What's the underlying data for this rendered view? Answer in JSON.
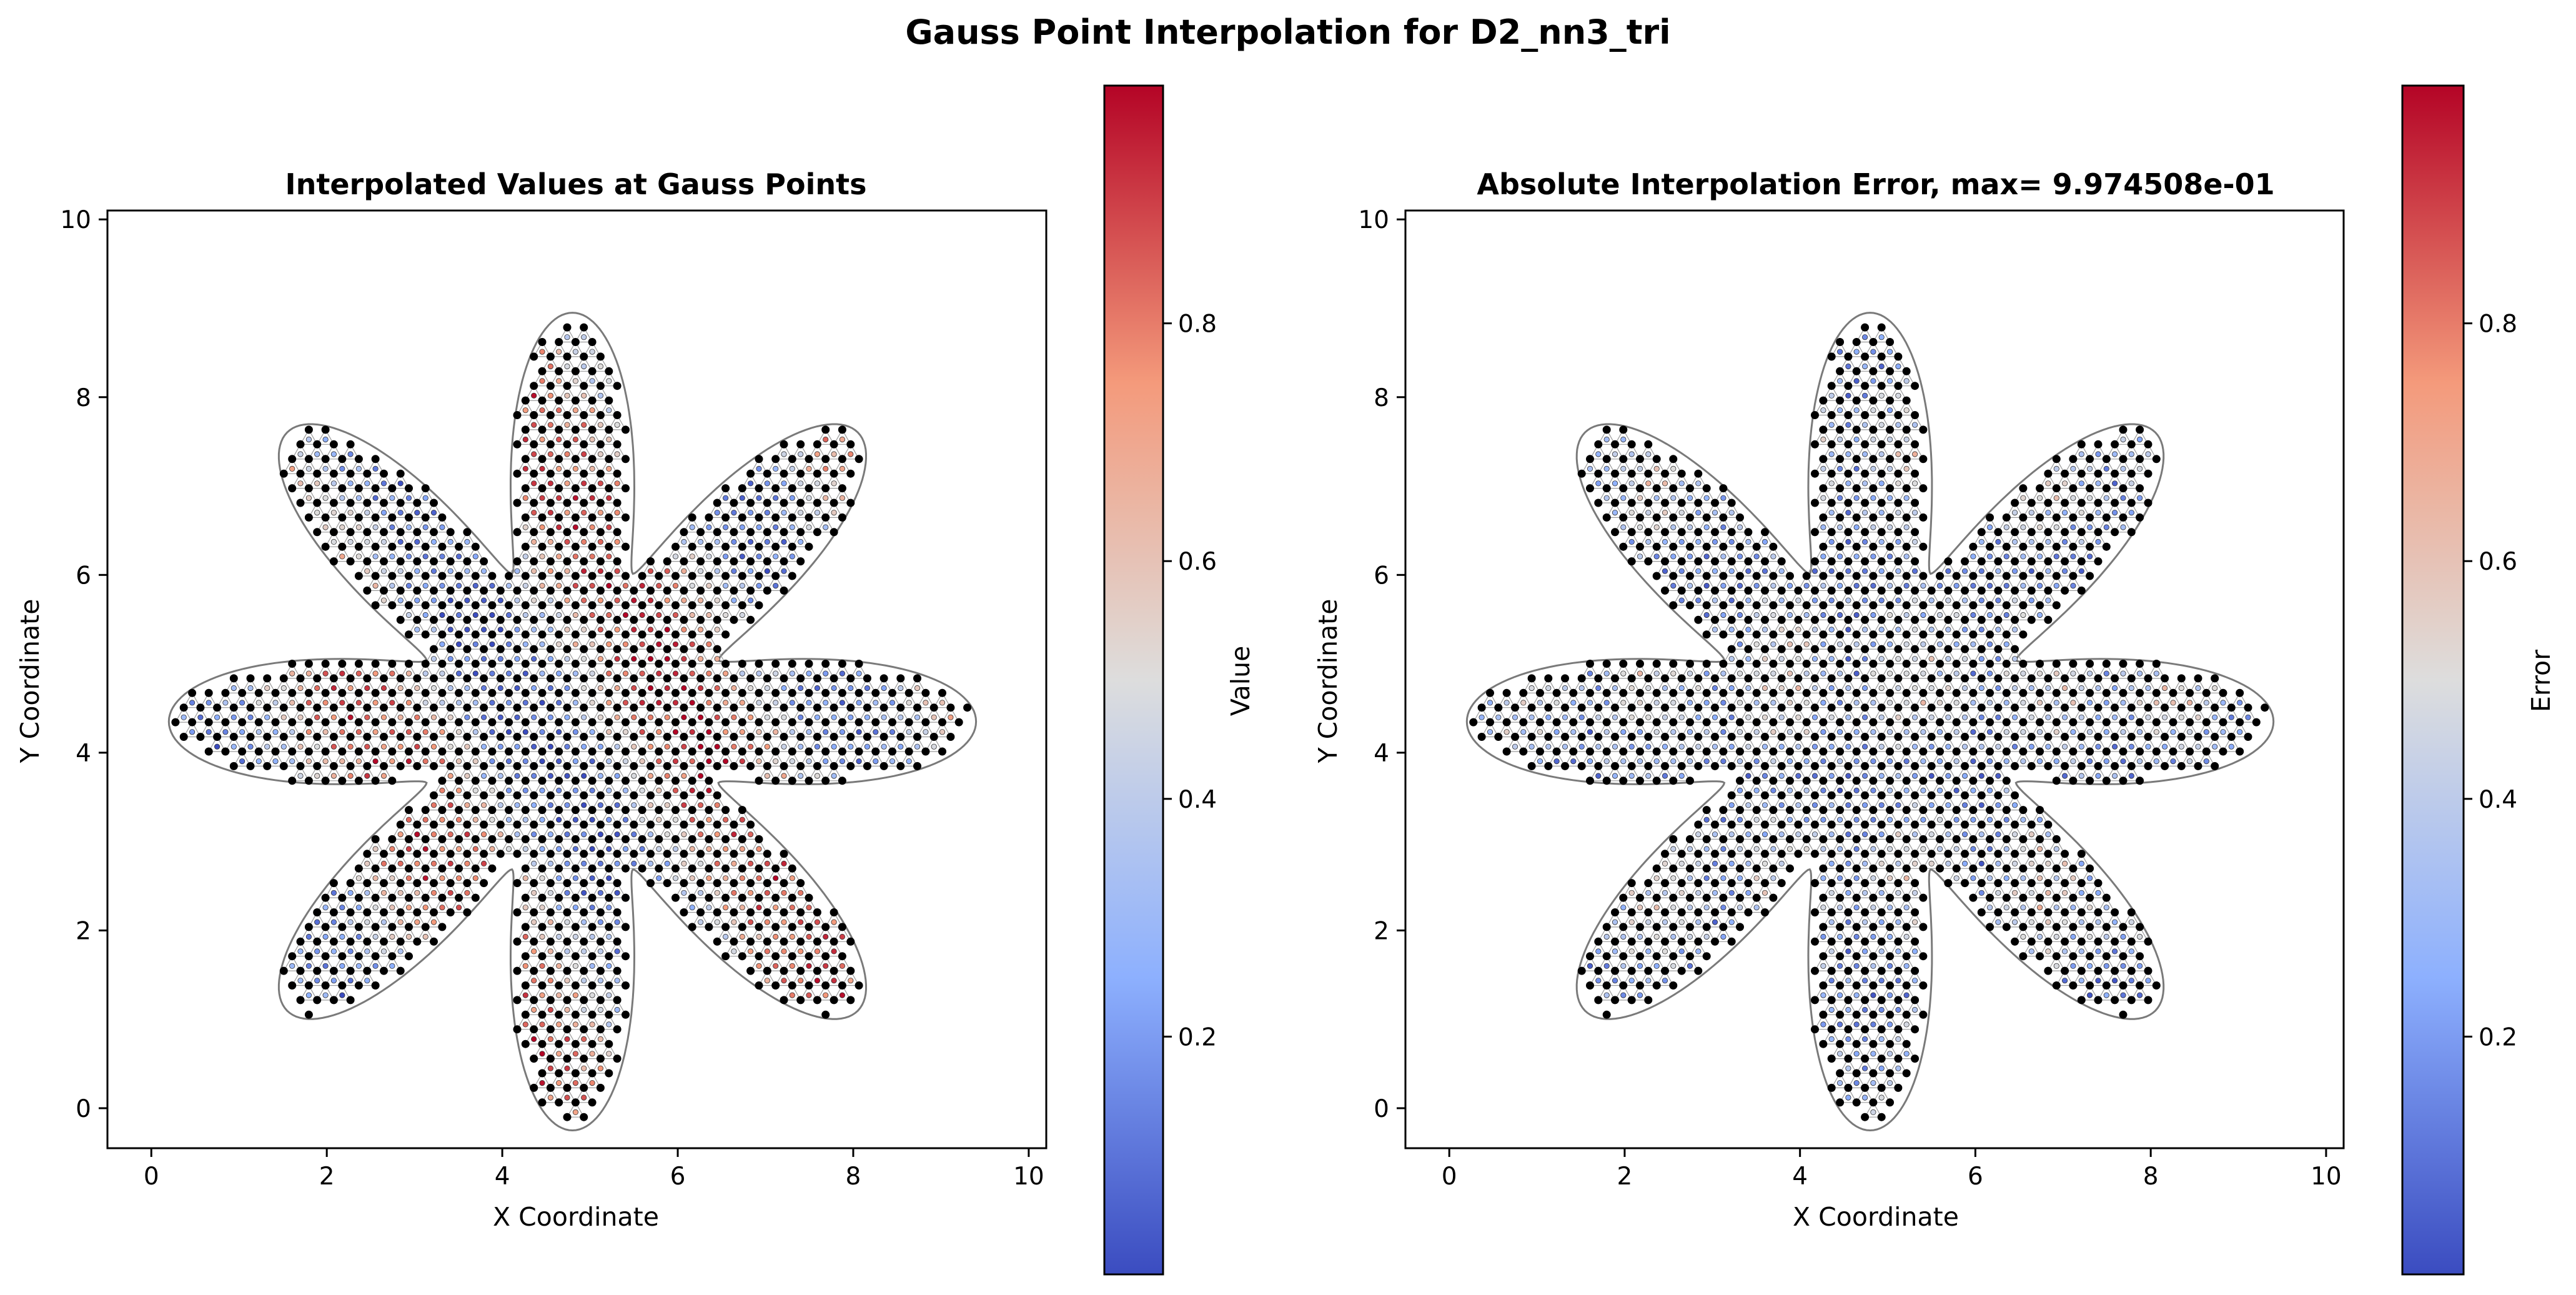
{
  "figure": {
    "title": "Gauss Point Interpolation for D2_nn3_tri"
  },
  "chart_data": [
    {
      "type": "scatter",
      "title": "Interpolated Values at Gauss Points",
      "xlabel": "X Coordinate",
      "ylabel": "Y Coordinate",
      "xlim": [
        -0.5,
        10.2
      ],
      "ylim": [
        -0.45,
        10.1
      ],
      "xticks": [
        0,
        2,
        4,
        6,
        8,
        10
      ],
      "yticks": [
        0,
        2,
        4,
        6,
        8,
        10
      ],
      "grid": false,
      "colorbar": {
        "label": "Value",
        "range": [
          0.0,
          1.0
        ],
        "ticks": [
          0.2,
          0.4,
          0.6,
          0.8
        ],
        "colormap": "coolwarm"
      },
      "mesh": {
        "shape": "eight-petal flower",
        "center": [
          4.8,
          4.35
        ],
        "core_radius": 1.8,
        "petal_tip_radius": 4.6,
        "petals": 8,
        "node_color": "#000000",
        "edge_color": "#7a7a7a"
      }
    },
    {
      "type": "scatter",
      "title": "Absolute Interpolation Error, max= 9.974508e-01",
      "xlabel": "X Coordinate",
      "ylabel": "Y Coordinate",
      "xlim": [
        -0.5,
        10.2
      ],
      "ylim": [
        -0.45,
        10.1
      ],
      "xticks": [
        0,
        2,
        4,
        6,
        8,
        10
      ],
      "yticks": [
        0,
        2,
        4,
        6,
        8,
        10
      ],
      "grid": false,
      "colorbar": {
        "label": "Error",
        "range": [
          0.0,
          1.0
        ],
        "ticks": [
          0.2,
          0.4,
          0.6,
          0.8
        ],
        "colormap": "coolwarm"
      },
      "mesh": {
        "shape": "eight-petal flower",
        "center": [
          4.8,
          4.35
        ],
        "core_radius": 1.8,
        "petal_tip_radius": 4.6,
        "petals": 8,
        "node_color": "#000000",
        "edge_color": "#7a7a7a"
      }
    }
  ]
}
